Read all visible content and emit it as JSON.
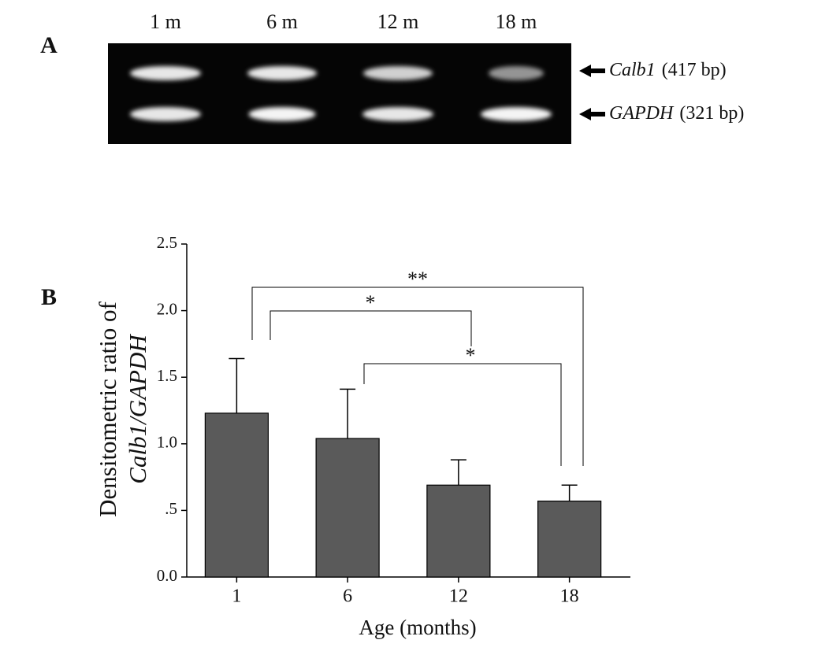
{
  "panels": [
    "A",
    "B"
  ],
  "gel": {
    "lanes": [
      "1 m",
      "6 m",
      "12 m",
      "18 m"
    ],
    "bands": [
      {
        "name": "Calb1",
        "size": "(417 bp)"
      },
      {
        "name": "GAPDH",
        "size": "(321 bp)"
      }
    ]
  },
  "chart_data": {
    "type": "bar",
    "ylabel": [
      "Densitometric ratio of",
      "Calb1/GAPDH"
    ],
    "xlabel": "Age (months)",
    "categories": [
      "1",
      "6",
      "12",
      "18"
    ],
    "values": [
      1.23,
      1.04,
      0.69,
      0.57
    ],
    "errors": [
      0.41,
      0.37,
      0.19,
      0.12
    ],
    "color": "#5a5a5a",
    "ylim": [
      0,
      2.5
    ],
    "yticks": [
      {
        "value": 0,
        "label": "0.0"
      },
      {
        "value": 0.5,
        "label": ".5"
      },
      {
        "value": 1,
        "label": "1.0"
      },
      1.5,
      {
        "value": 2,
        "label": "2.0"
      },
      2.5
    ],
    "annotations": [
      "**",
      "*",
      "*"
    ]
  }
}
